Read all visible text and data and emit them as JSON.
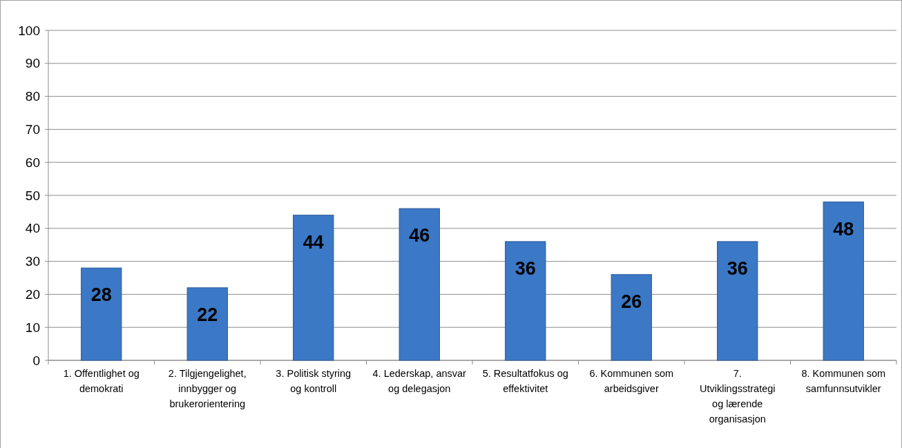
{
  "chart_data": {
    "type": "bar",
    "categories": [
      "1. Offentlighet og demokrati",
      "2. Tilgjengelighet, innbygger og brukerorientering",
      "3. Politisk styring og kontroll",
      "4. Lederskap, ansvar og delegasjon",
      "5. Resultatfokus og effektivitet",
      "6. Kommunen som arbeidsgiver",
      "7. Utviklingsstrategi og lærende organisasjon",
      "8. Kommunen som samfunnsutvikler"
    ],
    "values": [
      28,
      22,
      44,
      46,
      36,
      26,
      36,
      48
    ],
    "color": "#3b78c6",
    "ylim": [
      0,
      100
    ],
    "yticks": [
      0,
      10,
      20,
      30,
      40,
      50,
      60,
      70,
      80,
      90,
      100
    ],
    "grid": "y",
    "data_labels": true
  }
}
